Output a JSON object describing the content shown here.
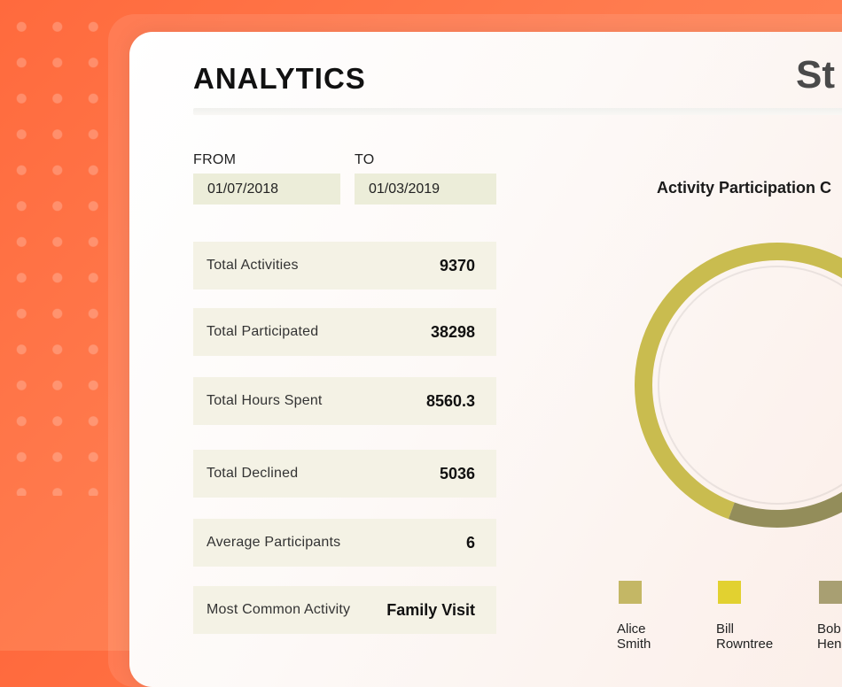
{
  "header": {
    "title": "ANALYTICS",
    "right_title": "St"
  },
  "filters": {
    "from_label": "FROM",
    "from_value": "01/07/2018",
    "to_label": "TO",
    "to_value": "01/03/2019"
  },
  "stats": [
    {
      "label": "Total Activities",
      "value": "9370"
    },
    {
      "label": "Total Participated",
      "value": "38298"
    },
    {
      "label": "Total Hours Spent",
      "value": "8560.3"
    },
    {
      "label": "Total Declined",
      "value": "5036"
    },
    {
      "label": "Average Participants",
      "value": "6"
    },
    {
      "label": "Most Common Activity",
      "value": "Family Visit"
    }
  ],
  "chart": {
    "title": "Activity Participation C",
    "legend": [
      {
        "label": "Alice\nSmith",
        "color": "#c4b765"
      },
      {
        "label": "Bill\nRowntree",
        "color": "#e2d130"
      },
      {
        "label": "Bob\nHen",
        "color": "#a89f72"
      }
    ]
  },
  "chart_data": {
    "type": "pie",
    "title": "Activity Participation C",
    "legend": [
      "Alice Smith",
      "Bill Rowntree",
      "Bob Hen"
    ],
    "visible_segments": [
      {
        "series": "Alice Smith",
        "color": "#c9bc4f",
        "start_deg": 200,
        "end_deg": 450
      },
      {
        "series": "olive segment",
        "color": "#938d5a",
        "start_deg": 110,
        "end_deg": 200
      },
      {
        "series": "grey segment",
        "color": "#b3aba0",
        "start_deg": 90,
        "end_deg": 110
      }
    ]
  }
}
